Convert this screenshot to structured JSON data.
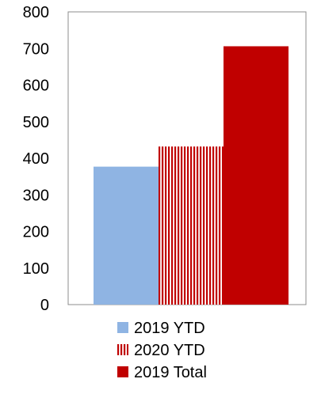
{
  "chart_data": {
    "type": "bar",
    "categories": [
      ""
    ],
    "series": [
      {
        "name": "2019 YTD",
        "values": [
          377
        ],
        "color": "#8fb4e3",
        "pattern": "solid"
      },
      {
        "name": "2020 YTD",
        "values": [
          432
        ],
        "color": "#c00000",
        "pattern": "vertical-stripes"
      },
      {
        "name": "2019 Total",
        "values": [
          706
        ],
        "color": "#c00000",
        "pattern": "solid"
      }
    ],
    "ylim": [
      0,
      800
    ],
    "yticks": [
      0,
      100,
      200,
      300,
      400,
      500,
      600,
      700,
      800
    ],
    "title": "",
    "xlabel": "",
    "ylabel": "",
    "grid": false,
    "legend": "bottom"
  }
}
